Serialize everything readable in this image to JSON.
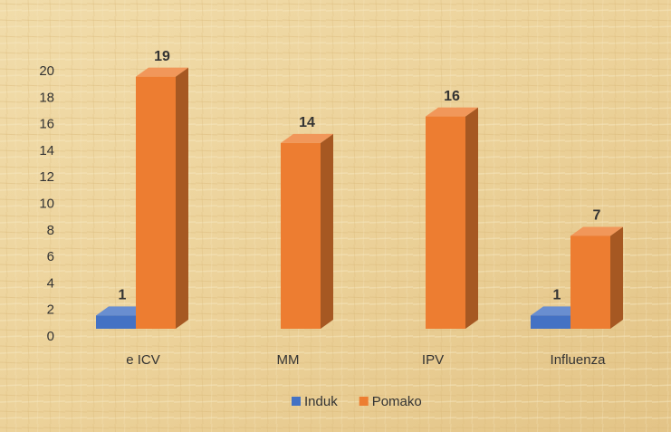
{
  "chart_data": {
    "type": "bar3d",
    "categories": [
      "e ICV",
      "MM",
      "IPV",
      "Influenza"
    ],
    "series": [
      {
        "name": "Induk",
        "color": "#4472c4",
        "values": [
          1,
          null,
          null,
          1
        ]
      },
      {
        "name": "Pomako",
        "color": "#ed7d31",
        "values": [
          19,
          14,
          16,
          7
        ]
      }
    ],
    "ylim": [
      0,
      20
    ],
    "yticks": [
      0,
      2,
      4,
      6,
      8,
      10,
      12,
      14,
      16,
      18,
      20
    ],
    "grid": false,
    "legend": "bottom"
  }
}
